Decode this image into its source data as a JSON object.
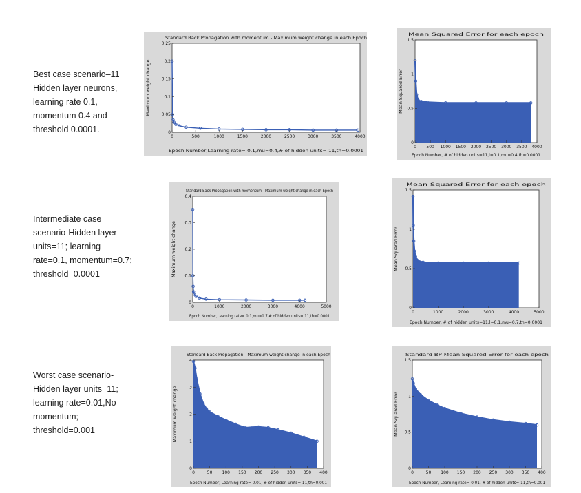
{
  "scenarios": [
    {
      "label_lines": [
        "Best case scenario–11",
        "Hidden layer neurons,",
        "learning rate 0.1,",
        "momentum 0.4 and",
        "threshold 0.0001."
      ]
    },
    {
      "label_lines": [
        "Intermediate case",
        "scenario-Hidden layer",
        "units=11; learning",
        "rate=0.1, momentum=0.7;",
        "threshold=0.0001"
      ]
    },
    {
      "label_lines": [
        "Worst case scenario-",
        "Hidden layer units=11;",
        "learning rate=0.01,No",
        "momentum;",
        "threshold=0.001"
      ]
    }
  ],
  "chart_data": [
    {
      "type": "scatter",
      "title": "Standard Back Propagation with momentum - Maximum weight change in each Epoch",
      "xlabel": "Epoch Number,Learning rate= 0.1,mu=0.4,# of hidden units= 11,th=0.0001",
      "ylabel": "Maximum weight change",
      "xlim": [
        0,
        4000
      ],
      "ylim": [
        0,
        0.25
      ],
      "xticks": [
        0,
        500,
        1000,
        1500,
        2000,
        2500,
        3000,
        3500,
        4000
      ],
      "yticks": [
        0,
        0.05,
        0.1,
        0.15,
        0.2,
        0.25
      ],
      "xtick_labels": [
        "0",
        "500",
        "1000",
        "1500",
        "2000",
        "2500",
        "3000",
        "3500",
        "4000"
      ],
      "ytick_labels": [
        "0",
        "0.05",
        "0.1",
        "0.15",
        "0.2",
        "0.25"
      ],
      "filled": false,
      "x": [
        0,
        10,
        20,
        40,
        80,
        150,
        300,
        600,
        1000,
        1500,
        2000,
        2500,
        3000,
        3500,
        3950
      ],
      "y": [
        0.2,
        0.05,
        0.035,
        0.028,
        0.022,
        0.018,
        0.014,
        0.011,
        0.009,
        0.008,
        0.007,
        0.007,
        0.006,
        0.006,
        0.006
      ],
      "color": "#3a5fb5"
    },
    {
      "type": "area",
      "title": "Mean Squared Error for each epoch",
      "xlabel": "Epoch Number, # of hidden units=11,l=0.1,mu=0.4,th=0.0001",
      "ylabel": "Mean Squared Error",
      "xlim": [
        0,
        4000
      ],
      "ylim": [
        0,
        1.5
      ],
      "xticks": [
        0,
        500,
        1000,
        1500,
        2000,
        2500,
        3000,
        3500,
        4000
      ],
      "yticks": [
        0,
        0.5,
        1,
        1.5
      ],
      "xtick_labels": [
        "0",
        "500",
        "1000",
        "1500",
        "2000",
        "2500",
        "3000",
        "3500",
        "4000"
      ],
      "ytick_labels": [
        "0",
        "0.5",
        "1",
        "1.5"
      ],
      "filled": true,
      "x": [
        0,
        20,
        50,
        100,
        200,
        400,
        1000,
        2000,
        3000,
        3800
      ],
      "y": [
        1.2,
        0.9,
        0.7,
        0.62,
        0.6,
        0.59,
        0.58,
        0.58,
        0.58,
        0.58
      ],
      "color": "#3a5fb5"
    },
    {
      "type": "scatter",
      "title": "Standard Back Propagation with momentum - Maximum weight change in each Epoch",
      "xlabel": "Epoch Number,Learning rate= 0.1,mu=0.7,# of hidden units= 11,th=0.0001",
      "ylabel": "Maximum weight change",
      "xlim": [
        0,
        5000
      ],
      "ylim": [
        0,
        0.4
      ],
      "xticks": [
        0,
        1000,
        2000,
        3000,
        4000,
        5000
      ],
      "yticks": [
        0,
        0.1,
        0.2,
        0.3,
        0.4
      ],
      "xtick_labels": [
        "0",
        "1000",
        "2000",
        "3000",
        "4000",
        "5000"
      ],
      "ytick_labels": [
        "0",
        "0.1",
        "0.2",
        "0.3",
        "0.4"
      ],
      "filled": false,
      "x": [
        0,
        5,
        15,
        30,
        60,
        120,
        250,
        500,
        1000,
        2000,
        3000,
        4000,
        4200
      ],
      "y": [
        0.35,
        0.1,
        0.06,
        0.04,
        0.03,
        0.022,
        0.016,
        0.012,
        0.01,
        0.009,
        0.008,
        0.008,
        0.008
      ],
      "color": "#3a5fb5"
    },
    {
      "type": "area",
      "title": "Mean Squared Error for each epoch",
      "xlabel": "Epoch Number, # of hidden units=11,l=0.1,mu=0.7,th=0.0001",
      "ylabel": "Mean Squared Error",
      "xlim": [
        0,
        5000
      ],
      "ylim": [
        0,
        1.5
      ],
      "xticks": [
        0,
        1000,
        2000,
        3000,
        4000,
        5000
      ],
      "yticks": [
        0,
        0.5,
        1,
        1.5
      ],
      "xtick_labels": [
        "0",
        "1000",
        "2000",
        "3000",
        "4000",
        "5000"
      ],
      "ytick_labels": [
        "0",
        "0.5",
        "1",
        "1.5"
      ],
      "filled": true,
      "x": [
        0,
        10,
        30,
        60,
        100,
        200,
        400,
        1000,
        2000,
        3000,
        4200
      ],
      "y": [
        1.42,
        1.05,
        0.85,
        0.72,
        0.65,
        0.6,
        0.58,
        0.57,
        0.57,
        0.57,
        0.57
      ],
      "color": "#3a5fb5"
    },
    {
      "type": "area",
      "title": "Standard Back Propagation - Maximum weight change in each Epoch",
      "xlabel": "Epoch Number, Learning rate= 0.01, # of hidden units= 11,th=0.001",
      "ylabel": "Maximum weight change",
      "xlim": [
        0,
        400
      ],
      "ylim": [
        0,
        4
      ],
      "xticks": [
        0,
        50,
        100,
        150,
        200,
        250,
        300,
        350,
        400
      ],
      "yticks": [
        0,
        1,
        2,
        3,
        4
      ],
      "xtick_labels": [
        "0",
        "50",
        "100",
        "150",
        "200",
        "250",
        "300",
        "350",
        "400"
      ],
      "ytick_labels": [
        "0",
        "1",
        "2",
        "3",
        "4"
      ],
      "filled": true,
      "x": [
        0,
        5,
        10,
        20,
        30,
        40,
        50,
        75,
        100,
        130,
        160,
        180,
        200,
        230,
        260,
        300,
        340,
        380
      ],
      "y": [
        3.95,
        3.7,
        3.3,
        2.75,
        2.4,
        2.2,
        2.08,
        1.92,
        1.78,
        1.63,
        1.5,
        1.52,
        1.53,
        1.5,
        1.42,
        1.3,
        1.15,
        1.0
      ],
      "color": "#3a5fb5"
    },
    {
      "type": "area",
      "title": "Standard BP-Mean Squared Error for each epoch",
      "xlabel": "Epoch Number, Learning rate= 0.01, # of hidden units= 11,th=0.001",
      "ylabel": "Mean Squared Error",
      "xlim": [
        0,
        400
      ],
      "ylim": [
        0,
        1.5
      ],
      "xticks": [
        0,
        50,
        100,
        150,
        200,
        250,
        300,
        350,
        400
      ],
      "yticks": [
        0,
        0.5,
        1,
        1.5
      ],
      "xtick_labels": [
        "0",
        "50",
        "100",
        "150",
        "200",
        "250",
        "300",
        "350",
        "400"
      ],
      "ytick_labels": [
        "0",
        "0.5",
        "1",
        "1.5"
      ],
      "filled": true,
      "x": [
        0,
        3,
        10,
        25,
        50,
        75,
        100,
        150,
        200,
        250,
        300,
        350,
        385
      ],
      "y": [
        1.24,
        1.18,
        1.1,
        1.02,
        0.94,
        0.88,
        0.83,
        0.76,
        0.71,
        0.67,
        0.64,
        0.62,
        0.6
      ],
      "color": "#3a5fb5"
    }
  ]
}
